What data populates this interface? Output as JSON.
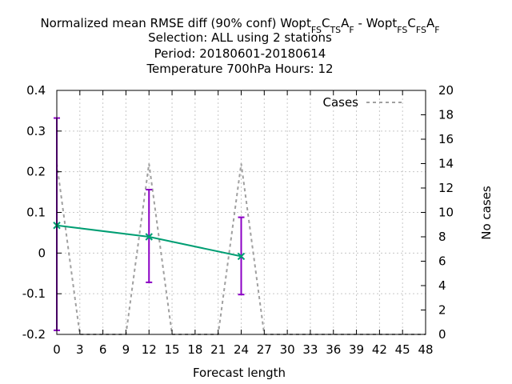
{
  "chart_data": {
    "type": "line",
    "title": {
      "line1": {
        "prefix": "Normalized mean RMSE diff (90% conf) Wopt",
        "exp_a": [
          "FS",
          "C",
          "TS",
          "A",
          "F"
        ],
        "sep": " - Wopt",
        "exp_b": [
          "FS",
          "C",
          "FS",
          "A",
          "F"
        ]
      },
      "line2": "Selection: ALL using     2 stations",
      "line3": "Period: 20180601-20180614",
      "line4": "Temperature 700hPa   Hours:  12"
    },
    "xlabel": "Forecast length",
    "ylabel": "",
    "y2label": "No cases",
    "xlim": [
      0,
      48
    ],
    "ylim": [
      -0.2,
      0.4
    ],
    "y2lim": [
      0,
      20
    ],
    "xticks": [
      "0",
      "3",
      "6",
      "9",
      "12",
      "15",
      "18",
      "21",
      "24",
      "27",
      "30",
      "33",
      "36",
      "39",
      "42",
      "45",
      "48"
    ],
    "yticks": [
      "-0.2",
      "-0.1",
      "0",
      "0.1",
      "0.2",
      "0.3",
      "0.4"
    ],
    "y2ticks": [
      "0",
      "2",
      "4",
      "6",
      "8",
      "10",
      "12",
      "14",
      "16",
      "18",
      "20"
    ],
    "grid": true,
    "legend": {
      "position": "top-right",
      "entries": [
        "Cases"
      ]
    },
    "colors": {
      "diff": "#009e73",
      "errorbar": "#8b00c4",
      "cases": "#a0a0a0"
    },
    "series": [
      {
        "x": [
          0,
          12,
          24
        ],
        "y": [
          0.068,
          0.04,
          -0.008
        ],
        "ci_low": [
          -0.19,
          -0.072,
          -0.102
        ],
        "ci_high": [
          0.332,
          0.156,
          0.088
        ]
      },
      {
        "name": "Cases",
        "axis": "y2",
        "x": [
          0,
          3,
          9,
          12,
          15,
          21,
          24,
          27,
          30,
          48
        ],
        "y": [
          14,
          0,
          0,
          14,
          0,
          0,
          14,
          0,
          0,
          0
        ]
      }
    ]
  }
}
